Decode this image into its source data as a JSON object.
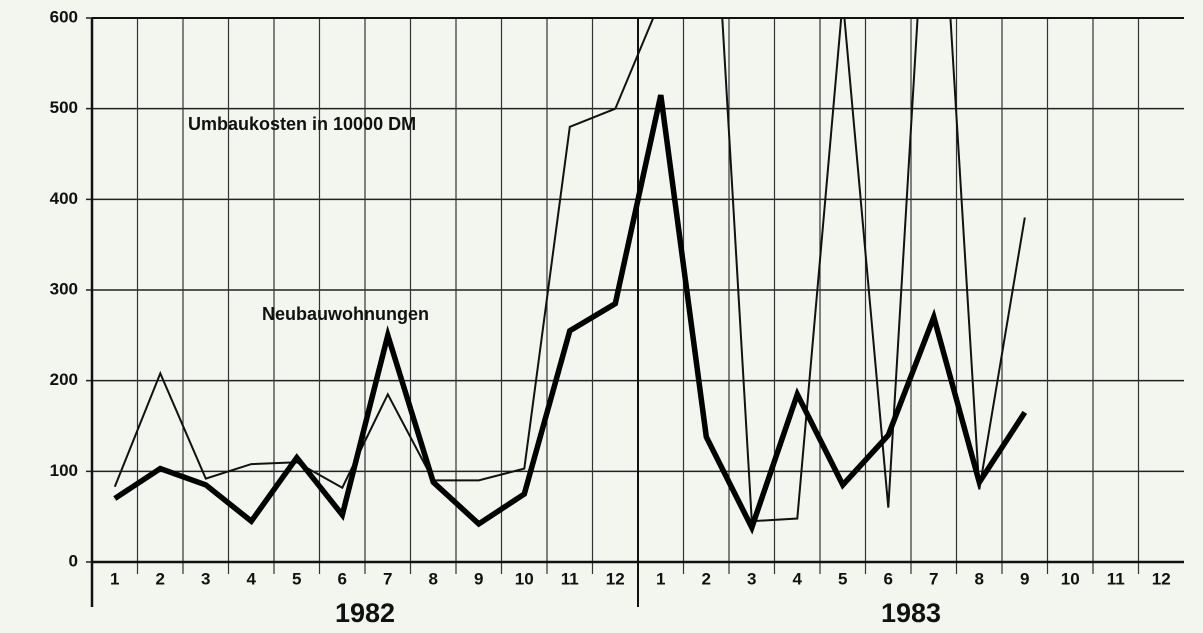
{
  "chart_data": {
    "type": "line",
    "categories": [
      "1",
      "2",
      "3",
      "4",
      "5",
      "6",
      "7",
      "8",
      "9",
      "10",
      "11",
      "12",
      "1",
      "2",
      "3",
      "4",
      "5",
      "6",
      "7",
      "8",
      "9",
      "10",
      "11",
      "12"
    ],
    "groups": [
      "1982",
      "1983"
    ],
    "series": [
      {
        "name": "Umbaukosten in 10000 DM",
        "color": "#111111",
        "values": [
          83,
          208,
          92,
          108,
          110,
          82,
          185,
          90,
          90,
          103,
          480,
          500,
          620,
          900,
          45,
          48,
          620,
          60,
          900,
          80,
          380,
          null,
          null,
          null
        ]
      },
      {
        "name": "Neubauwohnungen",
        "color": "#000000",
        "values": [
          70,
          103,
          85,
          45,
          115,
          52,
          250,
          88,
          42,
          75,
          255,
          285,
          515,
          138,
          38,
          185,
          85,
          140,
          270,
          88,
          165,
          null,
          null,
          null
        ]
      }
    ],
    "ylim": [
      0,
      600
    ],
    "yticks": [
      0,
      100,
      200,
      300,
      400,
      500,
      600
    ],
    "grid": true
  }
}
